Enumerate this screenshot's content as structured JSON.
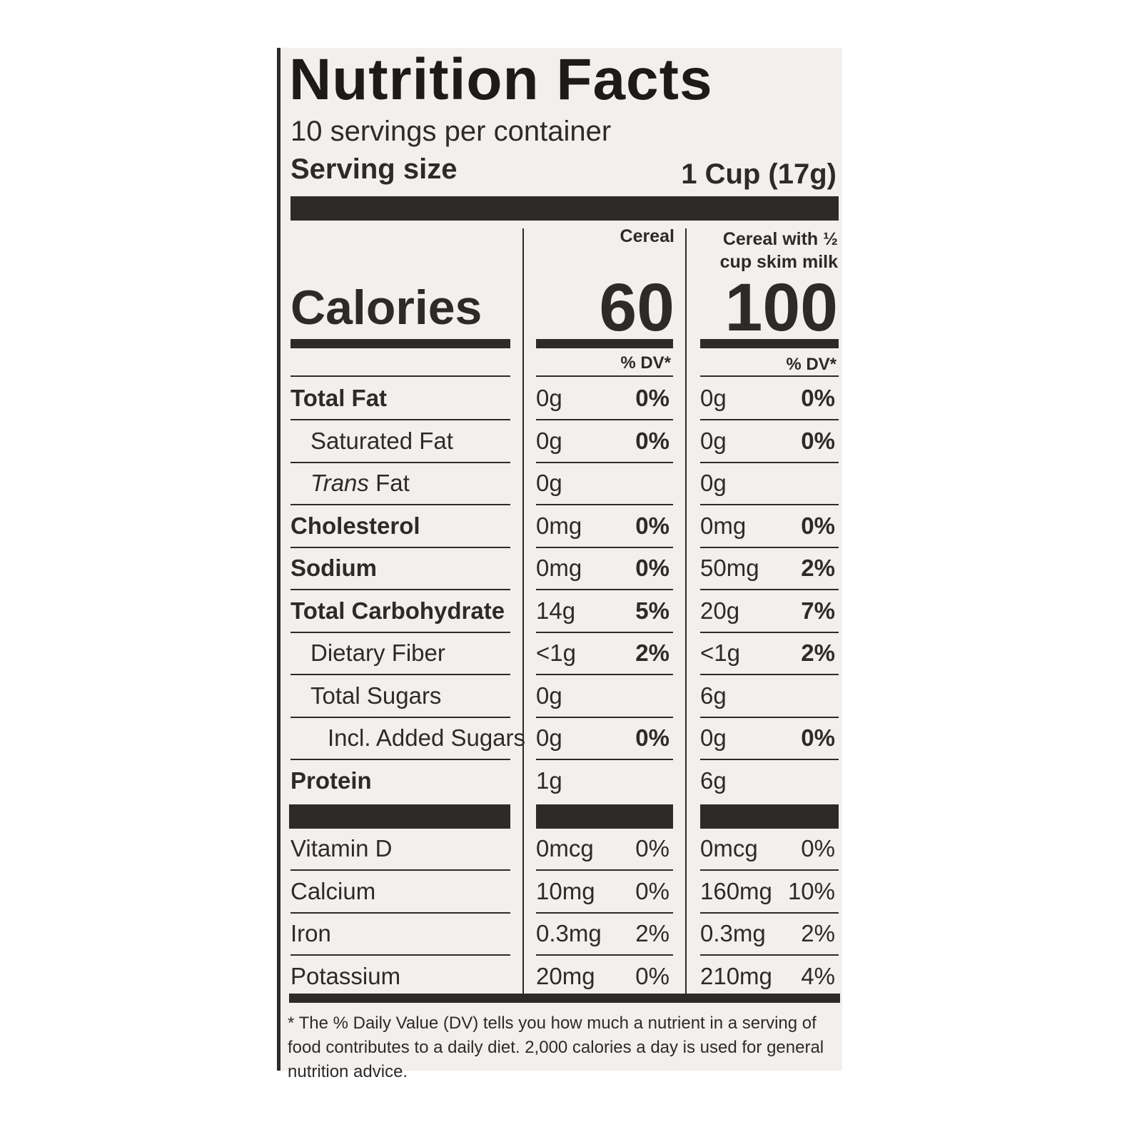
{
  "title": "Nutrition Facts",
  "servings": "10 servings per container",
  "serving_size": {
    "label": "Serving size",
    "value": "1 Cup (17g)"
  },
  "calories_label": "Calories",
  "columns": [
    {
      "header": "Cereal",
      "calories": "60",
      "dv_header": "% DV*"
    },
    {
      "header": "Cereal with ½ cup skim milk",
      "calories": "100",
      "dv_header": "% DV*"
    }
  ],
  "rows": [
    {
      "name": "Total Fat",
      "values": [
        {
          "amount": "0g",
          "dv": "0%"
        },
        {
          "amount": "0g",
          "dv": "0%"
        }
      ]
    },
    {
      "name": "Saturated Fat",
      "values": [
        {
          "amount": "0g",
          "dv": "0%"
        },
        {
          "amount": "0g",
          "dv": "0%"
        }
      ]
    },
    {
      "name_italic": "Trans",
      "name": "Fat",
      "values": [
        {
          "amount": "0g"
        },
        {
          "amount": "0g"
        }
      ]
    },
    {
      "name": "Cholesterol",
      "values": [
        {
          "amount": "0mg",
          "dv": "0%"
        },
        {
          "amount": "0mg",
          "dv": "0%"
        }
      ]
    },
    {
      "name": "Sodium",
      "values": [
        {
          "amount": "0mg",
          "dv": "0%"
        },
        {
          "amount": "50mg",
          "dv": "2%"
        }
      ]
    },
    {
      "name": "Total Carbohydrate",
      "values": [
        {
          "amount": "14g",
          "dv": "5%"
        },
        {
          "amount": "20g",
          "dv": "7%"
        }
      ]
    },
    {
      "name": "Dietary Fiber",
      "values": [
        {
          "amount": "<1g",
          "dv": "2%"
        },
        {
          "amount": "<1g",
          "dv": "2%"
        }
      ]
    },
    {
      "name": "Total Sugars",
      "values": [
        {
          "amount": "0g"
        },
        {
          "amount": "6g"
        }
      ]
    },
    {
      "name": "Incl. Added Sugars",
      "values": [
        {
          "amount": "0g",
          "dv": "0%"
        },
        {
          "amount": "0g",
          "dv": "0%"
        }
      ]
    },
    {
      "name": "Protein",
      "values": [
        {
          "amount": "1g"
        },
        {
          "amount": "6g"
        }
      ]
    },
    {
      "name": "Vitamin D",
      "values": [
        {
          "amount": "0mcg",
          "dv": "0%"
        },
        {
          "amount": "0mcg",
          "dv": "0%"
        }
      ]
    },
    {
      "name": "Calcium",
      "values": [
        {
          "amount": "10mg",
          "dv": "0%"
        },
        {
          "amount": "160mg",
          "dv": "10%"
        }
      ]
    },
    {
      "name": "Iron",
      "values": [
        {
          "amount": "0.3mg",
          "dv": "2%"
        },
        {
          "amount": "0.3mg",
          "dv": "2%"
        }
      ]
    },
    {
      "name": "Potassium",
      "values": [
        {
          "amount": "20mg",
          "dv": "0%"
        },
        {
          "amount": "210mg",
          "dv": "4%"
        }
      ]
    }
  ],
  "footnote": "* The % Daily Value (DV) tells you how much a nutrient in a serving of food contributes to a daily diet. 2,000 calories a day is used for general nutrition advice."
}
